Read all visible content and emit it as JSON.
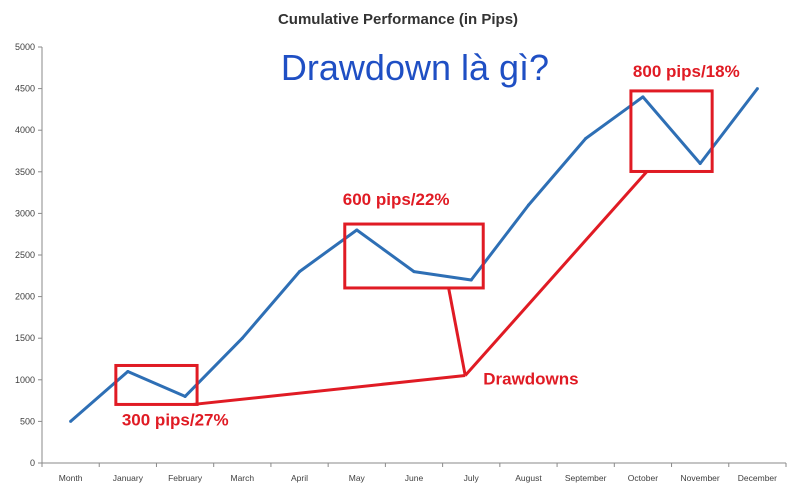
{
  "overlay_title": "Drawdown là gì?",
  "chart_data": {
    "type": "line",
    "title": "Cumulative Performance (in Pips)",
    "xlabel": "",
    "ylabel": "",
    "categories": [
      "Month",
      "January",
      "February",
      "March",
      "April",
      "May",
      "June",
      "July",
      "August",
      "September",
      "October",
      "November",
      "December"
    ],
    "series": [
      {
        "values": [
          500,
          1100,
          800,
          1500,
          2300,
          2800,
          2300,
          2200,
          3100,
          3900,
          4400,
          3600,
          4500
        ]
      }
    ],
    "ylim": [
      0,
      5000
    ],
    "yticks": [
      0,
      500,
      1000,
      1500,
      2000,
      2500,
      3000,
      3500,
      4000,
      4500,
      5000
    ],
    "grid": false,
    "colors": {
      "line": "#2e6fb5",
      "annotation": "#e01b24"
    },
    "annotations": {
      "pointer_label": "Drawdowns",
      "drawdowns": [
        {
          "label": "300 pips/27%",
          "from": "January",
          "to": "February",
          "high": 1100,
          "low": 800
        },
        {
          "label": "600 pips/22%",
          "from": "May",
          "to": "July",
          "high": 2800,
          "low": 2200
        },
        {
          "label": "800 pips/18%",
          "from": "October",
          "to": "November",
          "high": 4400,
          "low": 3600
        }
      ]
    }
  }
}
